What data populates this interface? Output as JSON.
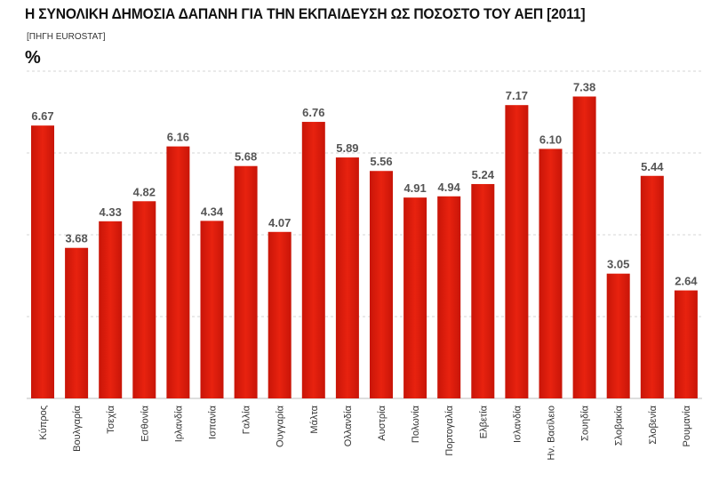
{
  "header": {
    "title": "Η ΣΥΝΟΛΙΚΗ ΔΗΜΟΣΙΑ ΔΑΠΑΝΗ ΓΙΑ ΤΗΝ ΕΚΠΑΙΔΕΥΣΗ ΩΣ ΠΟΣΟΣΤΟ ΤΟΥ ΑΕΠ [2011]",
    "source": "[ΠΗΓΗ EUROSTAT]",
    "unit": "%"
  },
  "colors": {
    "bar": "#e8220f",
    "bar_dark": "#c81508"
  },
  "chart_data": {
    "type": "bar",
    "title": "Η ΣΥΝΟΛΙΚΗ ΔΗΜΟΣΙΑ ΔΑΠΑΝΗ ΓΙΑ ΤΗΝ ΕΚΠΑΙΔΕΥΣΗ ΩΣ ΠΟΣΟΣΤΟ ΤΟΥ ΑΕΠ [2011]",
    "ylabel": "%",
    "ylim": [
      0,
      8
    ],
    "grid": true,
    "categories": [
      "Κύπρος",
      "Βουλγαρία",
      "Τσεχία",
      "Εσθονία",
      "Ιρλανδία",
      "Ισπανία",
      "Γαλλία",
      "Ουγγαρία",
      "Μάλτα",
      "Ολλανδία",
      "Αυστρία",
      "Πολωνία",
      "Πορτογαλία",
      "Ελβετία",
      "Ισλανδία",
      "Ην. Βασίλειο",
      "Σουηδία",
      "Σλοβακία",
      "Σλοβενία",
      "Ρουμανία"
    ],
    "values": [
      6.67,
      3.68,
      4.33,
      4.82,
      6.16,
      4.34,
      5.68,
      4.07,
      6.76,
      5.89,
      5.56,
      4.91,
      4.94,
      5.24,
      7.17,
      6.1,
      7.38,
      3.05,
      5.44,
      2.64
    ],
    "labels": [
      "6.67",
      "3.68",
      "4.33",
      "4.82",
      "6.16",
      "4.34",
      "5.68",
      "4.07",
      "6.76",
      "5.89",
      "5.56",
      "4.91",
      "4.94",
      "5.24",
      "7.17",
      "6.10",
      "7.38",
      "3.05",
      "5.44",
      "2.64"
    ]
  }
}
